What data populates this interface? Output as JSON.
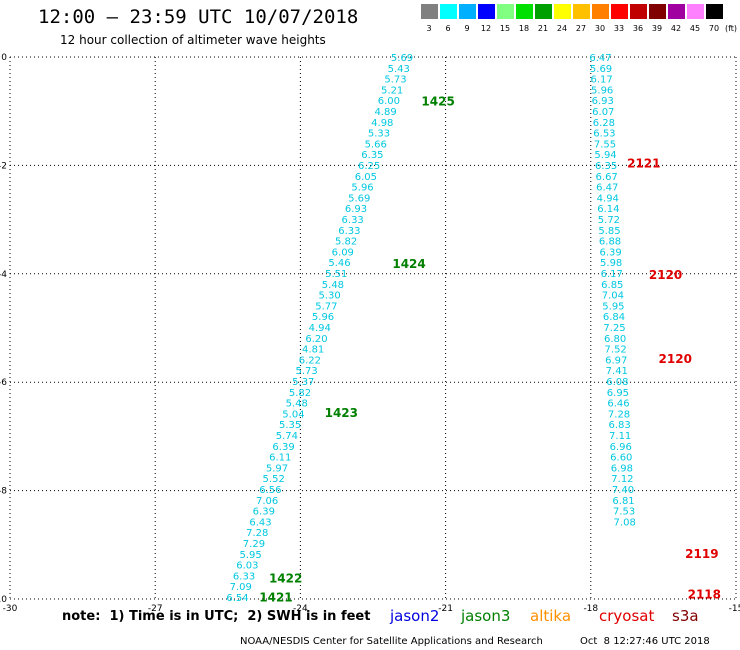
{
  "title": "12:00 — 23:59 UTC 10/07/2018",
  "subtitle": "12 hour collection of altimeter wave heights",
  "legend": {
    "unit_label": "(ft)",
    "bins": [
      {
        "label": "3",
        "color": "#808080"
      },
      {
        "label": "6",
        "color": "#00ffff"
      },
      {
        "label": "9",
        "color": "#00b0ff"
      },
      {
        "label": "12",
        "color": "#0000ff"
      },
      {
        "label": "15",
        "color": "#80ff80"
      },
      {
        "label": "18",
        "color": "#00e000"
      },
      {
        "label": "21",
        "color": "#00a000"
      },
      {
        "label": "24",
        "color": "#ffff00"
      },
      {
        "label": "27",
        "color": "#ffc000"
      },
      {
        "label": "30",
        "color": "#ff8000"
      },
      {
        "label": "33",
        "color": "#ff0000"
      },
      {
        "label": "36",
        "color": "#c00000"
      },
      {
        "label": "39",
        "color": "#800000"
      },
      {
        "label": "42",
        "color": "#a000a0"
      },
      {
        "label": "45",
        "color": "#ff80ff"
      },
      {
        "label": "70",
        "color": "#000000"
      }
    ]
  },
  "map": {
    "lon_range": [
      -30,
      -15
    ],
    "lat_range": [
      -10,
      0
    ],
    "x_ticks": [
      "-30",
      "-27",
      "-24",
      "-21",
      "-18",
      "-15"
    ],
    "y_ticks": [
      "0",
      "-2",
      "-4",
      "-6",
      "-8",
      "-10"
    ],
    "grid": "dotted",
    "text_color": "#00c8e0"
  },
  "tracks": [
    {
      "lon_top": -21.9,
      "lon_bottom": -25.3,
      "values": [
        "5.69",
        "5.43",
        "5.73",
        "5.21",
        "6.00",
        "4.89",
        "4.98",
        "5.33",
        "5.66",
        "6.35",
        "6.25",
        "6.05",
        "5.96",
        "5.69",
        "6.93",
        "6.33",
        "6.33",
        "5.82",
        "6.09",
        "5.46",
        "5.51",
        "5.48",
        "5.30",
        "5.77",
        "5.96",
        "4.94",
        "6.20",
        "4.81",
        "6.22",
        "5.73",
        "5.37",
        "5.82",
        "5.48",
        "5.04",
        "5.35",
        "5.74",
        "6.39",
        "6.11",
        "5.97",
        "5.52",
        "6.56",
        "7.06",
        "6.39",
        "6.43",
        "7.28",
        "7.29",
        "5.95",
        "6.03",
        "6.33",
        "7.09",
        "6.54"
      ]
    },
    {
      "lon_top": -17.8,
      "lon_bottom": -17.3,
      "values": [
        "6.47",
        "5.69",
        "6.17",
        "5.96",
        "6.93",
        "6.07",
        "6.28",
        "6.53",
        "7.55",
        "5.94",
        "6.35",
        "6.67",
        "6.47",
        "4.94",
        "6.14",
        "5.72",
        "5.85",
        "6.88",
        "6.39",
        "5.98",
        "6.17",
        "6.85",
        "7.04",
        "5.95",
        "6.84",
        "7.25",
        "6.80",
        "7.52",
        "6.97",
        "7.41",
        "6.08",
        "6.95",
        "6.46",
        "7.28",
        "6.83",
        "7.11",
        "6.96",
        "6.60",
        "6.98",
        "7.12",
        "7.40",
        "6.81",
        "7.53",
        "7.08"
      ]
    }
  ],
  "pass_labels": [
    {
      "text": "1425",
      "lat": -0.8,
      "lon": -21.5,
      "color": "#008000"
    },
    {
      "text": "1424",
      "lat": -3.8,
      "lon": -22.1,
      "color": "#008000"
    },
    {
      "text": "1423",
      "lat": -6.55,
      "lon": -23.5,
      "color": "#008000"
    },
    {
      "text": "1422",
      "lat": -9.6,
      "lon": -24.65,
      "color": "#008000"
    },
    {
      "text": "1421",
      "lat": -9.95,
      "lon": -24.85,
      "color": "#008000"
    },
    {
      "text": "2121",
      "lat": -1.95,
      "lon": -17.25,
      "color": "#e00000"
    },
    {
      "text": "2120",
      "lat": -4.0,
      "lon": -16.8,
      "color": "#e00000"
    },
    {
      "text": "2120",
      "lat": -5.55,
      "lon": -16.6,
      "color": "#e00000"
    },
    {
      "text": "2119",
      "lat": -9.15,
      "lon": -16.05,
      "color": "#e00000"
    },
    {
      "text": "2118",
      "lat": -9.9,
      "lon": -16.0,
      "color": "#e00000"
    }
  ],
  "note": "note:  1) Time is in UTC;  2) SWH is in feet",
  "satellites": [
    {
      "name": "jason2",
      "color": "#0000e0"
    },
    {
      "name": "jason3",
      "color": "#008000"
    },
    {
      "name": "altika",
      "color": "#ff9000"
    },
    {
      "name": "cryosat",
      "color": "#e00000"
    },
    {
      "name": "s3a",
      "color": "#800000"
    }
  ],
  "credit": "NOAA/NESDIS Center for Satellite Applications and Research",
  "timestamp": "Oct  8 12:27:46 UTC 2018"
}
